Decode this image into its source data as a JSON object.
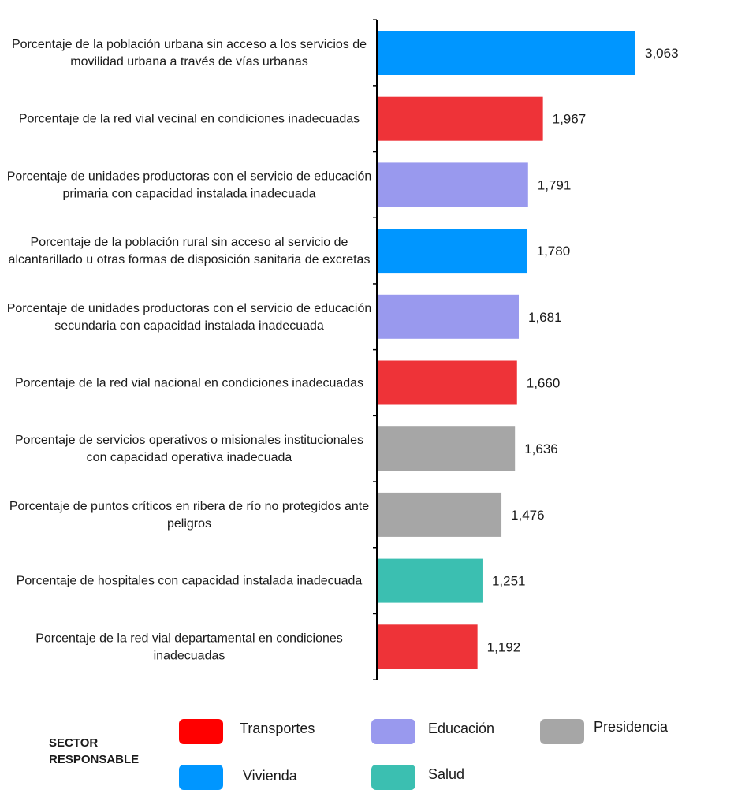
{
  "chart_data": {
    "type": "bar",
    "orientation": "horizontal",
    "categories": [
      [
        "Porcentaje de la población urbana sin acceso a los servicios de",
        "movilidad urbana a través de vías urbanas"
      ],
      [
        "Porcentaje de la red vial vecinal en condiciones inadecuadas"
      ],
      [
        "Porcentaje de unidades productoras con el servicio de educación",
        "primaria con capacidad instalada inadecuada"
      ],
      [
        "Porcentaje de la población rural sin acceso al servicio de",
        "alcantarillado u otras formas de disposición sanitaria de excretas"
      ],
      [
        "Porcentaje de unidades productoras con el servicio de educación",
        "secundaria con capacidad instalada inadecuada"
      ],
      [
        "Porcentaje de la red vial nacional en condiciones inadecuadas"
      ],
      [
        "Porcentaje de servicios operativos o misionales institucionales",
        "con capacidad operativa inadecuada"
      ],
      [
        "Porcentaje de puntos críticos en ribera de río no protegidos ante",
        "peligros"
      ],
      [
        "Porcentaje de hospitales con capacidad instalada inadecuada"
      ],
      [
        "Porcentaje de la red vial departamental en condiciones",
        "inadecuadas"
      ]
    ],
    "values": [
      3.063,
      1.967,
      1.791,
      1.78,
      1.681,
      1.66,
      1.636,
      1.476,
      1.251,
      1.192
    ],
    "value_labels": [
      "3,063",
      "1,967",
      "1,791",
      "1,780",
      "1,681",
      "1,660",
      "1,636",
      "1,476",
      "1,251",
      "1,192"
    ],
    "sectors": [
      "Vivienda",
      "Transportes",
      "Educación",
      "Vivienda",
      "Educación",
      "Transportes",
      "Presidencia",
      "Presidencia",
      "Salud",
      "Transportes"
    ],
    "xlim": [
      0,
      3.5
    ],
    "grid": false
  },
  "legend": {
    "title_lines": [
      "SECTOR",
      "RESPONSABLE"
    ],
    "items": [
      {
        "name": "Transportes",
        "color": "#ff0000"
      },
      {
        "name": "Educación",
        "color": "#9999ee"
      },
      {
        "name": "Presidencia",
        "color": "#a6a6a6"
      },
      {
        "name": "Vivienda",
        "color": "#0096ff"
      },
      {
        "name": "Salud",
        "color": "#3bbfb1"
      }
    ]
  },
  "bar_colors": {
    "Transportes": "#ee3338",
    "Educación": "#9999ee",
    "Presidencia": "#a6a6a6",
    "Vivienda": "#0096ff",
    "Salud": "#3bbfb1"
  }
}
